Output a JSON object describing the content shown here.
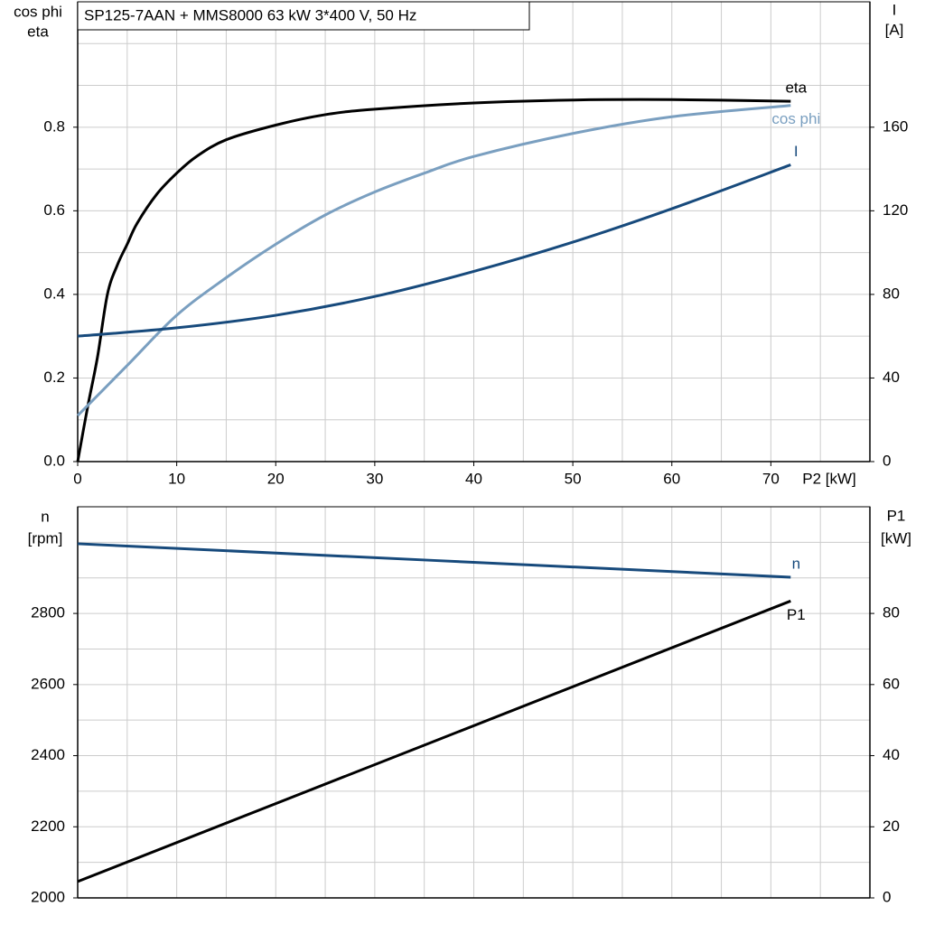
{
  "chart_data": [
    {
      "type": "line",
      "title": "SP125-7AAN + MMS8000   63 kW   3*400 V, 50 Hz",
      "ylabel": [
        "cos phi",
        "eta"
      ],
      "y2label": [
        "I",
        "[A]"
      ],
      "xlabel": "P2 [kW]",
      "xlim": [
        0,
        80
      ],
      "ylim": [
        0,
        1.1
      ],
      "y2lim": [
        0,
        220
      ],
      "xticks": [
        0,
        10,
        20,
        30,
        40,
        50,
        60,
        70
      ],
      "yticks": [
        {
          "value": 0,
          "label": "0.0"
        },
        0.2,
        0.4,
        0.6,
        0.8
      ],
      "y2ticks": [
        0,
        40,
        80,
        120,
        160
      ],
      "xgrid": [
        5,
        10,
        15,
        20,
        25,
        30,
        35,
        40,
        45,
        50,
        55,
        60,
        65,
        70,
        75
      ],
      "ygrid": [
        0.1,
        0.2,
        0.3,
        0.4,
        0.5,
        0.6,
        0.7,
        0.8,
        0.9,
        1.0
      ],
      "grid": true,
      "series": [
        {
          "name": "eta",
          "color": "#000000",
          "axis": "y",
          "x": [
            0,
            1,
            2,
            3,
            4,
            5,
            6,
            8,
            10,
            12,
            15,
            20,
            25,
            30,
            40,
            50,
            60,
            72
          ],
          "values": [
            0,
            0.13,
            0.25,
            0.4,
            0.47,
            0.52,
            0.57,
            0.64,
            0.69,
            0.73,
            0.77,
            0.805,
            0.83,
            0.843,
            0.858,
            0.865,
            0.866,
            0.862
          ]
        },
        {
          "name": "cos phi",
          "color": "#7a9fc0",
          "axis": "y",
          "x": [
            0,
            5,
            10,
            15,
            20,
            25,
            30,
            35,
            40,
            50,
            60,
            72
          ],
          "values": [
            0.11,
            0.23,
            0.35,
            0.44,
            0.52,
            0.59,
            0.645,
            0.69,
            0.73,
            0.785,
            0.825,
            0.852
          ]
        },
        {
          "name": "I",
          "color": "#174a7c",
          "axis": "y2",
          "x": [
            0,
            10,
            20,
            30,
            40,
            50,
            60,
            72
          ],
          "values": [
            60,
            64,
            70,
            79,
            91,
            105,
            121,
            142
          ]
        }
      ]
    },
    {
      "type": "line",
      "ylabel": [
        "n",
        "[rpm]"
      ],
      "y2label": [
        "P1",
        "[kW]"
      ],
      "xlim": [
        0,
        80
      ],
      "ylim": [
        2000,
        3100
      ],
      "y2lim": [
        0,
        110
      ],
      "yticks": [
        2000,
        2200,
        2400,
        2600,
        2800
      ],
      "y2ticks": [
        0,
        20,
        40,
        60,
        80
      ],
      "xgrid": [
        5,
        10,
        15,
        20,
        25,
        30,
        35,
        40,
        45,
        50,
        55,
        60,
        65,
        70,
        75
      ],
      "ygrid": [
        2100,
        2200,
        2300,
        2400,
        2500,
        2600,
        2700,
        2800,
        2900,
        3000
      ],
      "grid": true,
      "series": [
        {
          "name": "n",
          "color": "#174a7c",
          "axis": "y",
          "x": [
            0,
            72
          ],
          "values": [
            2996,
            2902
          ]
        },
        {
          "name": "P1",
          "color": "#000000",
          "axis": "y2",
          "x": [
            0,
            72
          ],
          "values": [
            4.6,
            83.5
          ]
        }
      ]
    }
  ]
}
